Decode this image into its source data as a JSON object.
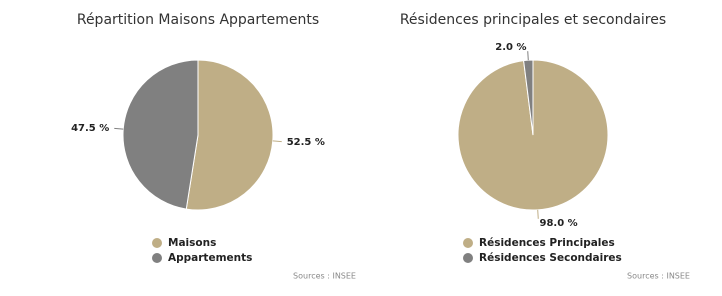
{
  "chart_data": [
    {
      "type": "pie",
      "title": "Répartition Maisons Appartements",
      "categories": [
        "Maisons",
        "Appartements"
      ],
      "values": [
        52.5,
        47.5
      ],
      "value_labels": [
        "52.5 %",
        "47.5 %"
      ],
      "colors": [
        "#bfae86",
        "#808080"
      ],
      "source": "Sources : INSEE"
    },
    {
      "type": "pie",
      "title": "Résidences principales et secondaires",
      "categories": [
        "Résidences Principales",
        "Résidences Secondaires"
      ],
      "values": [
        98.0,
        2.0
      ],
      "value_labels": [
        "98.0 %",
        "2.0 %"
      ],
      "colors": [
        "#bfae86",
        "#808080"
      ],
      "source": "Sources : INSEE"
    }
  ]
}
